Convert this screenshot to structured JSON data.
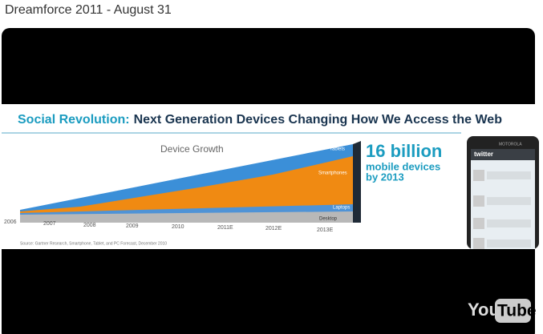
{
  "header": {
    "title": "Dreamforce 2011 - August 31"
  },
  "slide": {
    "title_lead": "Social Revolution:",
    "title_rest": "Next Generation Devices Changing How We Access the Web",
    "chart": {
      "title": "Device Growth",
      "labels": [
        "Tablets",
        "Smartphones",
        "Laptops",
        "Desktop"
      ],
      "years": [
        "2006",
        "2007",
        "2008",
        "2009",
        "2010",
        "2011E",
        "2012E",
        "2013E"
      ]
    },
    "callout": [
      "16 billion",
      "mobile devices",
      "by 2013"
    ],
    "source": "Source: Gartner Research, Smartphone, Tablet, and PC Forecast, December 2010",
    "phone": {
      "brand": "MOTOROLA",
      "app": "twitter"
    }
  },
  "logo": {
    "left": "You",
    "right": "Tube"
  }
}
